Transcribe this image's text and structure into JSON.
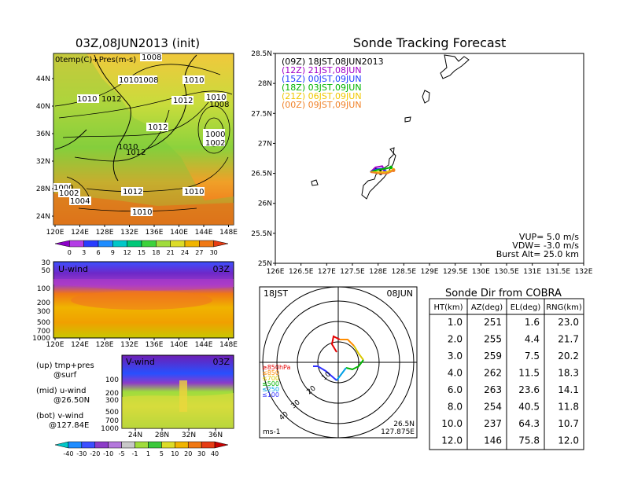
{
  "map_panel": {
    "title": "03Z,08JUN2013 (init)",
    "label": "0temp(C)+Pres(m-s)",
    "xticks": [
      "120E",
      "124E",
      "128E",
      "132E",
      "136E",
      "140E",
      "144E",
      "148E"
    ],
    "yticks": [
      "24N",
      "28N",
      "32N",
      "36N",
      "40N",
      "44N"
    ],
    "contour_labels": [
      "1008",
      "1010",
      "1008",
      "1010",
      "1012",
      "1010",
      "1010",
      "1012",
      "1008",
      "1012",
      "1010",
      "1012",
      "1000",
      "1002",
      "1000",
      "1002",
      "1004",
      "1012",
      "1010",
      "1010"
    ],
    "colorbar": {
      "ticks": [
        "0",
        "3",
        "6",
        "9",
        "12",
        "15",
        "18",
        "21",
        "24",
        "27",
        "30"
      ]
    }
  },
  "u_panel": {
    "label": "U-wind",
    "time": "03Z",
    "yticks": [
      "30",
      "50",
      "100",
      "200",
      "300",
      "500",
      "700",
      "1000"
    ],
    "xticks": [
      "120E",
      "124E",
      "128E",
      "132E",
      "136E",
      "140E",
      "144E",
      "148E"
    ]
  },
  "v_panel": {
    "label": "V-wind",
    "time": "03Z",
    "yticks": [
      "100",
      "200",
      "300",
      "500",
      "700",
      "1000"
    ],
    "xticks": [
      "24N",
      "28N",
      "32N",
      "36N"
    ],
    "colorbar": {
      "ticks": [
        "-40",
        "-30",
        "-20",
        "-10",
        "-5",
        "-1",
        "1",
        "5",
        "10",
        "20",
        "30",
        "40"
      ]
    }
  },
  "notes": {
    "up": [
      "(up) tmp+pres",
      "@surf"
    ],
    "mid": [
      "(mid) u-wind",
      "@26.50N"
    ],
    "bot": [
      "(bot) v-wind",
      "@127.84E"
    ]
  },
  "track_panel": {
    "title": "Sonde Tracking Forecast",
    "legend": [
      {
        "text": "(09Z)  18JST,08JUN2013",
        "color": "#000000"
      },
      {
        "text": "(12Z)  21JST,08JUN",
        "color": "#a000c8"
      },
      {
        "text": "(15Z)  00JST,09JUN",
        "color": "#1e3cff"
      },
      {
        "text": "(18Z)  03JST,09JUN",
        "color": "#00b400"
      },
      {
        "text": "(21Z)  06JST,09JUN",
        "color": "#f0c800"
      },
      {
        "text": "(00Z)  09JST,09JUN",
        "color": "#f08228"
      }
    ],
    "params": [
      "VUP=  5.0  m/s",
      "VDW=  -3.0  m/s",
      "Burst Alt=  25.0  km"
    ]
  },
  "hodo_panel": {
    "time_label": "18JST",
    "date_label": "08JUN",
    "level_labels": [
      {
        "text": "≥850hPa",
        "color": "#e60000"
      },
      {
        "text": "≤850",
        "color": "#ff8c00"
      },
      {
        "text": "≤700",
        "color": "#dcc800"
      },
      {
        "text": "≤500",
        "color": "#00b400"
      },
      {
        "text": "≤250",
        "color": "#00a0e6"
      },
      {
        "text": "≤100",
        "color": "#3232ff"
      }
    ],
    "ring_labels": [
      "10",
      "20",
      "30",
      "40"
    ],
    "units": "ms-1",
    "position": [
      "26.5N",
      "127.875E"
    ]
  },
  "table": {
    "title": "Sonde Dir from COBRA",
    "headers": [
      "HT(km)",
      "AZ(deg)",
      "EL(deg)",
      "RNG(km)"
    ],
    "rows": [
      [
        "1.0",
        "251",
        "1.6",
        "23.0"
      ],
      [
        "2.0",
        "255",
        "4.4",
        "21.7"
      ],
      [
        "3.0",
        "259",
        "7.5",
        "20.2"
      ],
      [
        "4.0",
        "262",
        "11.5",
        "18.3"
      ],
      [
        "6.0",
        "263",
        "23.6",
        "14.1"
      ],
      [
        "8.0",
        "254",
        "40.5",
        "11.8"
      ],
      [
        "10.0",
        "237",
        "64.3",
        "10.7"
      ],
      [
        "12.0",
        "146",
        "75.8",
        "12.0"
      ]
    ]
  },
  "chart_data": [
    {
      "type": "line",
      "title": "Sonde Tracking Forecast",
      "x_ticks": [
        "126E",
        "126.5E",
        "127E",
        "127.5E",
        "128E",
        "128.5E",
        "129E",
        "129.5E",
        "130E",
        "130.5E",
        "131E",
        "131.5E",
        "132E"
      ],
      "y_ticks": [
        "25N",
        "25.5N",
        "26N",
        "26.5N",
        "27N",
        "27.5N",
        "28N",
        "28.5N"
      ],
      "xlim": [
        126,
        132
      ],
      "ylim": [
        25,
        28.5
      ],
      "series": [
        {
          "name": "(09Z)  18JST,08JUN2013",
          "color": "#000000",
          "points": [
            [
              127.85,
              26.52
            ],
            [
              127.95,
              26.58
            ],
            [
              128.05,
              26.55
            ],
            [
              128.05,
              26.5
            ]
          ]
        },
        {
          "name": "(12Z)  21JST,08JUN",
          "color": "#a000c8",
          "points": [
            [
              127.85,
              26.52
            ],
            [
              127.95,
              26.6
            ],
            [
              128.08,
              26.62
            ],
            [
              128.12,
              26.56
            ]
          ]
        },
        {
          "name": "(15Z)  00JST,09JUN",
          "color": "#1e3cff",
          "points": [
            [
              127.85,
              26.52
            ],
            [
              127.97,
              26.57
            ],
            [
              128.1,
              26.58
            ],
            [
              128.15,
              26.52
            ]
          ]
        },
        {
          "name": "(18Z)  03JST,09JUN",
          "color": "#00b400",
          "points": [
            [
              127.85,
              26.52
            ],
            [
              128.0,
              26.56
            ],
            [
              128.15,
              26.58
            ],
            [
              128.25,
              26.6
            ]
          ]
        },
        {
          "name": "(21Z)  06JST,09JUN",
          "color": "#f0c800",
          "points": [
            [
              127.85,
              26.52
            ],
            [
              128.0,
              26.52
            ],
            [
              128.15,
              26.52
            ],
            [
              128.3,
              26.56
            ]
          ]
        },
        {
          "name": "(00Z)  09JST,09JUN",
          "color": "#f08228",
          "points": [
            [
              127.85,
              26.52
            ],
            [
              128.02,
              26.5
            ],
            [
              128.18,
              26.5
            ],
            [
              128.3,
              26.55
            ]
          ]
        }
      ]
    },
    {
      "type": "table",
      "title": "Sonde Dir from COBRA",
      "columns": [
        "HT(km)",
        "AZ(deg)",
        "EL(deg)",
        "RNG(km)"
      ],
      "rows": [
        [
          1.0,
          251,
          1.6,
          23.0
        ],
        [
          2.0,
          255,
          4.4,
          21.7
        ],
        [
          3.0,
          259,
          7.5,
          20.2
        ],
        [
          4.0,
          262,
          11.5,
          18.3
        ],
        [
          6.0,
          263,
          23.6,
          14.1
        ],
        [
          8.0,
          254,
          40.5,
          11.8
        ],
        [
          10.0,
          237,
          64.3,
          10.7
        ],
        [
          12.0,
          146,
          75.8,
          12.0
        ]
      ]
    }
  ]
}
